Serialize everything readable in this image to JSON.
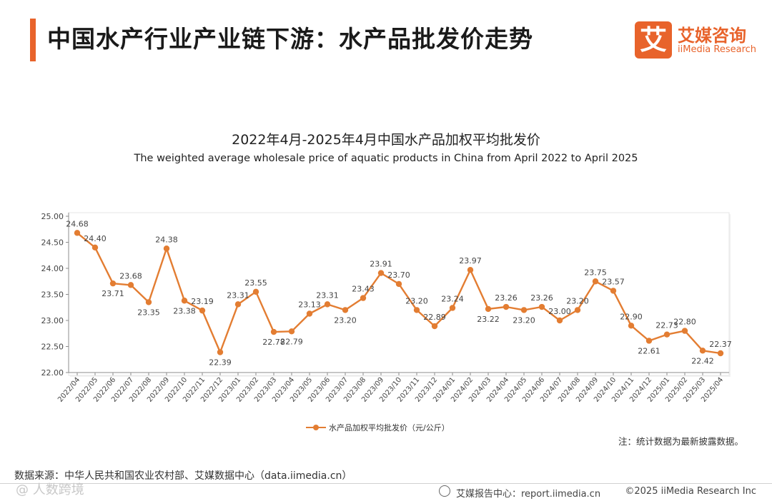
{
  "header": {
    "title": "中国水产行业产业链下游：水产品批发价走势",
    "logo_mark": "艾",
    "logo_cn": "艾媒咨询",
    "logo_en": "iiMedia Research",
    "accent_color": "#e8632b"
  },
  "chart_data": {
    "type": "line",
    "title": "2022年4月-2025年4月中国水产品加权平均批发价",
    "subtitle": "The weighted average wholesale price of aquatic products in China from April 2022 to April 2025",
    "categories": [
      "2022/04",
      "2022/05",
      "2022/06",
      "2022/07",
      "2022/08",
      "2022/09",
      "2022/10",
      "2022/11",
      "2022/12",
      "2023/01",
      "2023/02",
      "2023/03",
      "2023/04",
      "2023/05",
      "2023/06",
      "2023/07",
      "2023/08",
      "2023/09",
      "2023/10",
      "2023/11",
      "2023/12",
      "2024/01",
      "2024/02",
      "2024/03",
      "2024/04",
      "2024/05",
      "2024/06",
      "2024/07",
      "2024/08",
      "2024/09",
      "2024/10",
      "2024/11",
      "2024/12",
      "2025/01",
      "2025/02",
      "2025/03",
      "2025/04"
    ],
    "series": [
      {
        "name": "水产品加权平均批发价（元/公斤）",
        "color": "#e37d32",
        "values": [
          24.68,
          24.4,
          23.71,
          23.68,
          23.35,
          24.38,
          23.38,
          23.19,
          22.39,
          23.31,
          23.55,
          22.78,
          22.79,
          23.13,
          23.31,
          23.2,
          23.43,
          23.91,
          23.7,
          23.2,
          22.89,
          23.24,
          23.97,
          23.22,
          23.26,
          23.2,
          23.26,
          23.0,
          23.2,
          23.75,
          23.57,
          22.9,
          22.61,
          22.73,
          22.8,
          22.42,
          22.37
        ]
      }
    ],
    "data_labels": [
      "24.68",
      "24.40",
      "23.71",
      "23.68",
      "23.35",
      "24.38",
      "23.38",
      "23.19",
      "22.39",
      "23.31",
      "23.55",
      "22.78",
      "22.79",
      "23.13",
      "23.31",
      "23.20",
      "23.43",
      "23.91",
      "23.70",
      "23.20",
      "22.89",
      "23.24",
      "23.97",
      "23.22",
      "23.26",
      "23.20",
      "23.26",
      "23.00",
      "23.20",
      "23.75",
      "23.57",
      "22.90",
      "22.61",
      "22.73",
      "22.80",
      "22.42",
      "22.37"
    ],
    "label_placement": [
      "above",
      "above",
      "below",
      "above",
      "below",
      "above",
      "below",
      "above",
      "below",
      "above",
      "above",
      "below",
      "below",
      "above",
      "above",
      "below",
      "above",
      "above",
      "above",
      "above",
      "above",
      "above",
      "above",
      "below",
      "above",
      "below",
      "above",
      "above",
      "above",
      "above",
      "above",
      "above",
      "below",
      "above",
      "above",
      "below",
      "above"
    ],
    "ylim": [
      22.0,
      25.0
    ],
    "yticks": [
      "25.00",
      "24.50",
      "24.00",
      "23.50",
      "23.00",
      "22.50",
      "22.00"
    ],
    "ytick_values": [
      25.0,
      24.5,
      24.0,
      23.5,
      23.0,
      22.5,
      22.0
    ],
    "xlabel": "",
    "ylabel": "",
    "grid": false,
    "legend": "bottom-center"
  },
  "legend": {
    "label": "水产品加权平均批发价（元/公斤）"
  },
  "note": "注：统计数据为最新披露数据。",
  "source": "数据来源：中华人民共和国农业农村部、艾媒数据中心（data.iimedia.cn）",
  "watermark": "@ 人数跨境",
  "footer": {
    "site": "艾媒报告中心：report.iimedia.cn",
    "copyright": "©2025  iiMedia Research  Inc"
  }
}
